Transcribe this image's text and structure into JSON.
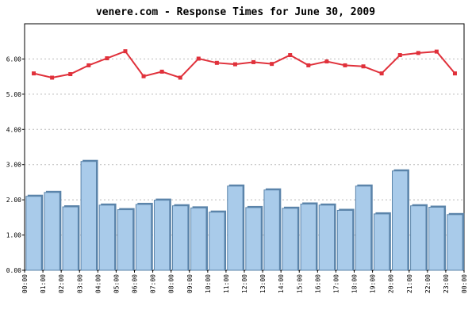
{
  "chart_data": {
    "type": "bar+line",
    "title": "venere.com - Response Times for June 30, 2009",
    "xlabel": "",
    "ylabel": "",
    "ylim": [
      0,
      7
    ],
    "yticks": [
      "0.00",
      "1.00",
      "2.00",
      "3.00",
      "4.00",
      "5.00",
      "6.00"
    ],
    "categories": [
      "00:00",
      "01:00",
      "02:00",
      "03:00",
      "04:00",
      "05:00",
      "06:00",
      "07:00",
      "08:00",
      "09:00",
      "10:00",
      "11:00",
      "12:00",
      "13:00",
      "14:00",
      "15:00",
      "16:00",
      "17:00",
      "18:00",
      "19:00",
      "20:00",
      "21:00",
      "22:00",
      "23:00"
    ],
    "end_label": "00:00",
    "grid": true,
    "series": [
      {
        "kind": "bar",
        "values": [
          2.1,
          2.21,
          1.8,
          3.09,
          1.85,
          1.72,
          1.87,
          1.99,
          1.83,
          1.77,
          1.65,
          2.39,
          1.78,
          2.28,
          1.76,
          1.88,
          1.85,
          1.7,
          2.39,
          1.6,
          2.82,
          1.83,
          1.79,
          1.58
        ],
        "color": "#a9cbea",
        "edge_color": "#5b84aa"
      },
      {
        "kind": "line",
        "values": [
          5.59,
          5.47,
          5.57,
          5.82,
          6.02,
          6.22,
          5.51,
          5.64,
          5.47,
          6.01,
          5.89,
          5.85,
          5.91,
          5.86,
          6.11,
          5.82,
          5.93,
          5.82,
          5.79,
          5.59,
          6.11,
          6.17,
          6.21,
          5.59
        ],
        "color": "#e0313b"
      }
    ]
  }
}
